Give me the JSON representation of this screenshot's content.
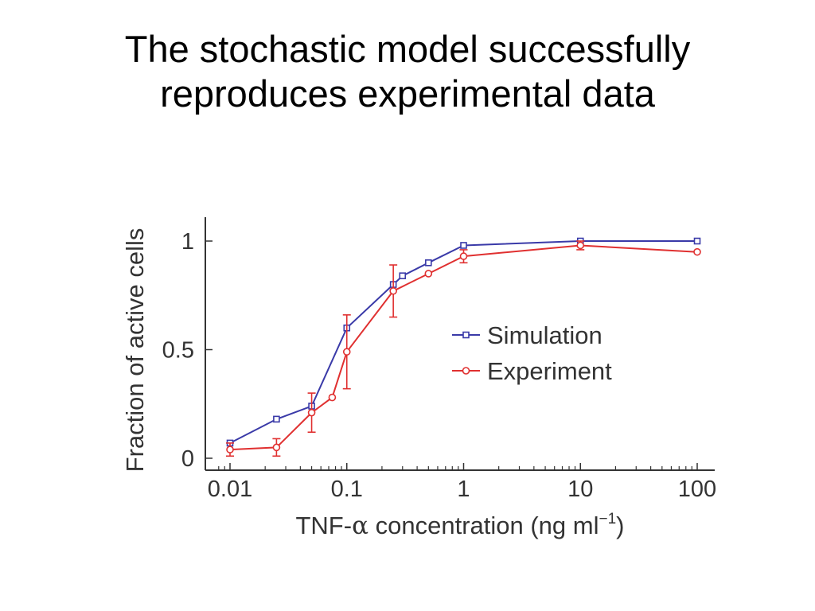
{
  "slide": {
    "title_line1": "The stochastic model successfully",
    "title_line2": "reproduces experimental data"
  },
  "chart_data": {
    "type": "line",
    "title": "",
    "xlabel_prefix": "TNF-",
    "xlabel_alpha": "α",
    "xlabel_mid": " concentration (ng ml",
    "xlabel_sup": "−1",
    "xlabel_suffix": ")",
    "ylabel": "Fraction of active cells",
    "xscale": "log",
    "xlim": [
      0.0075,
      110
    ],
    "ylim": [
      0,
      1.05
    ],
    "x_ticks": [
      0.01,
      0.1,
      1,
      10,
      100
    ],
    "x_tick_labels": [
      "0.01",
      "0.1",
      "1",
      "10",
      "100"
    ],
    "y_ticks": [
      0,
      0.5,
      1
    ],
    "y_tick_labels": [
      "0",
      "0.5",
      "1"
    ],
    "grid": false,
    "legend_position": "center-right",
    "series": [
      {
        "name": "Simulation",
        "color": "#3a3aa8",
        "marker": "square",
        "x": [
          0.01,
          0.025,
          0.05,
          0.1,
          0.25,
          0.3,
          0.5,
          1,
          10,
          100
        ],
        "y": [
          0.07,
          0.18,
          0.24,
          0.6,
          0.8,
          0.84,
          0.9,
          0.98,
          1.0,
          1.0
        ]
      },
      {
        "name": "Experiment",
        "color": "#e03030",
        "marker": "circle",
        "x": [
          0.01,
          0.025,
          0.05,
          0.075,
          0.1,
          0.25,
          0.5,
          1,
          10,
          100
        ],
        "y": [
          0.04,
          0.05,
          0.21,
          0.28,
          0.49,
          0.77,
          0.85,
          0.93,
          0.98,
          0.95
        ],
        "err": [
          0.03,
          0.04,
          0.09,
          0.0,
          0.17,
          0.12,
          0.0,
          0.03,
          0.02,
          0.0
        ]
      }
    ]
  }
}
